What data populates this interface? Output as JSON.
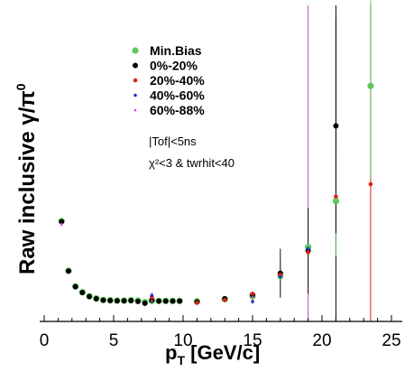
{
  "chart_data": {
    "type": "scatter",
    "xlim": [
      0,
      25
    ],
    "x_ticks": [
      "0",
      "5",
      "10",
      "15",
      "20",
      "25"
    ],
    "grid": false,
    "legend_position": "top-left",
    "xlabel": {
      "main": "p",
      "sub": "T",
      "rest": " [GeV/c]"
    },
    "ylabel": {
      "main": "Raw inclusive  γ/π",
      "sup": "0"
    },
    "annotations": [
      "|Tof|<5ns",
      "χ²<3 & twrhit<40"
    ],
    "series": [
      {
        "name": "Min.Bias",
        "color": "#5cc95c",
        "points": [
          {
            "x": 1.25,
            "y": 0.33
          },
          {
            "x": 1.75,
            "y": 0.168
          },
          {
            "x": 2.25,
            "y": 0.117
          },
          {
            "x": 2.75,
            "y": 0.098
          },
          {
            "x": 3.25,
            "y": 0.085
          },
          {
            "x": 3.75,
            "y": 0.078
          },
          {
            "x": 4.25,
            "y": 0.073
          },
          {
            "x": 4.75,
            "y": 0.072
          },
          {
            "x": 5.25,
            "y": 0.071
          },
          {
            "x": 5.75,
            "y": 0.071
          },
          {
            "x": 6.25,
            "y": 0.072
          },
          {
            "x": 6.75,
            "y": 0.071
          },
          {
            "x": 7.25,
            "y": 0.066
          },
          {
            "x": 7.75,
            "y": 0.07
          },
          {
            "x": 8.25,
            "y": 0.07
          },
          {
            "x": 8.75,
            "y": 0.07
          },
          {
            "x": 9.25,
            "y": 0.07
          },
          {
            "x": 9.75,
            "y": 0.07
          },
          {
            "x": 11,
            "y": 0.069
          },
          {
            "x": 13,
            "y": 0.075
          },
          {
            "x": 15,
            "y": 0.085
          },
          {
            "x": 17,
            "y": 0.15,
            "err": 0.06
          },
          {
            "x": 19,
            "y": 0.245,
            "err": 0.12
          },
          {
            "x": 21,
            "y": 0.395,
            "err": 0.18
          },
          {
            "x": 23.5,
            "y": 0.77,
            "err": 0.3
          }
        ]
      },
      {
        "name": "0%-20%",
        "color": "#000000",
        "points": [
          {
            "x": 1.25,
            "y": 0.328
          },
          {
            "x": 1.75,
            "y": 0.167
          },
          {
            "x": 2.25,
            "y": 0.116
          },
          {
            "x": 2.75,
            "y": 0.097
          },
          {
            "x": 3.25,
            "y": 0.084
          },
          {
            "x": 3.75,
            "y": 0.077
          },
          {
            "x": 4.25,
            "y": 0.072
          },
          {
            "x": 4.75,
            "y": 0.071
          },
          {
            "x": 5.25,
            "y": 0.07
          },
          {
            "x": 5.75,
            "y": 0.07
          },
          {
            "x": 6.25,
            "y": 0.071
          },
          {
            "x": 6.75,
            "y": 0.068
          },
          {
            "x": 7.25,
            "y": 0.062
          },
          {
            "x": 7.75,
            "y": 0.072
          },
          {
            "x": 8.25,
            "y": 0.069
          },
          {
            "x": 8.75,
            "y": 0.069
          },
          {
            "x": 9.25,
            "y": 0.069
          },
          {
            "x": 9.75,
            "y": 0.069
          },
          {
            "x": 11,
            "y": 0.066
          },
          {
            "x": 13,
            "y": 0.077
          },
          {
            "x": 15,
            "y": 0.09
          },
          {
            "x": 17,
            "y": 0.16,
            "err": 0.08
          },
          {
            "x": 19,
            "y": 0.233,
            "err": 0.14
          },
          {
            "x": 21,
            "y": 0.64,
            "err": 0.35
          }
        ]
      },
      {
        "name": "20%-40%",
        "color": "#e0201a",
        "points": [
          {
            "x": 7.75,
            "y": 0.082
          },
          {
            "x": 11,
            "y": 0.064
          },
          {
            "x": 13,
            "y": 0.073
          },
          {
            "x": 15,
            "y": 0.093
          },
          {
            "x": 17,
            "y": 0.155
          },
          {
            "x": 19,
            "y": 0.228
          },
          {
            "x": 21,
            "y": 0.41
          },
          {
            "x": 23.5,
            "y": 0.45
          }
        ]
      },
      {
        "name": "40%-60%",
        "color": "#2233cc",
        "points": [
          {
            "x": 7.75,
            "y": 0.088
          },
          {
            "x": 15,
            "y": 0.068
          },
          {
            "x": 17,
            "y": 0.148
          },
          {
            "x": 19,
            "y": 0.24
          }
        ]
      },
      {
        "name": "60%-88%",
        "color": "#cc44cc",
        "points": [
          {
            "x": 1.25,
            "y": 0.32
          },
          {
            "x": 7.75,
            "y": 0.07
          },
          {
            "x": 15,
            "y": 0.082
          }
        ]
      }
    ]
  }
}
